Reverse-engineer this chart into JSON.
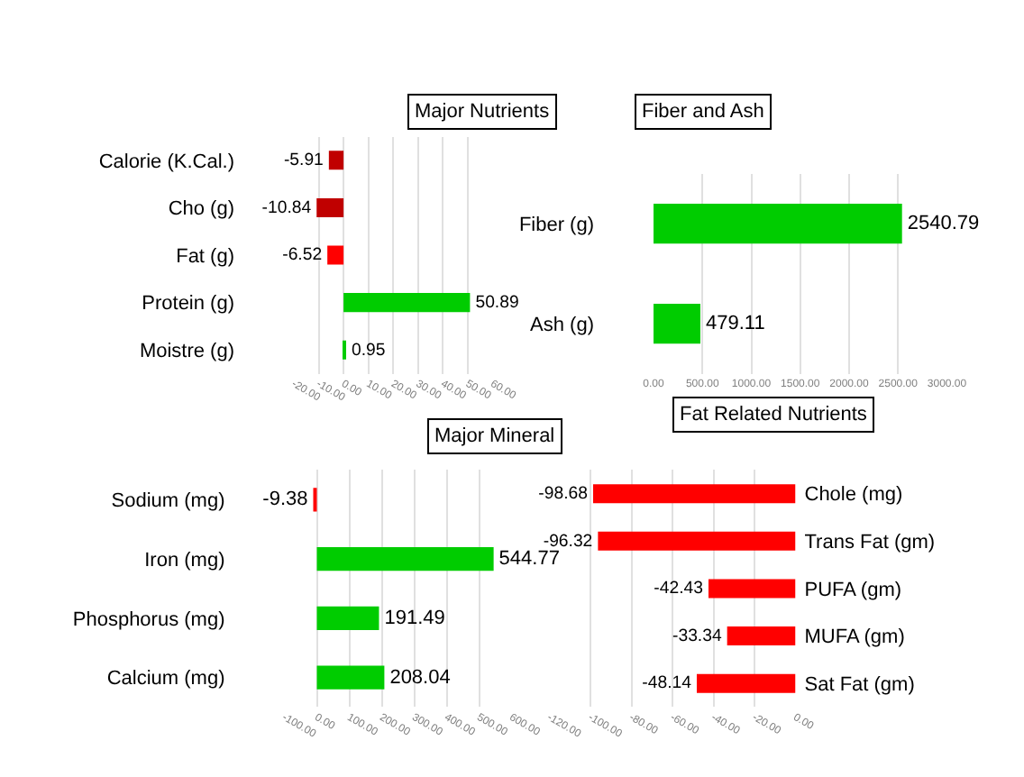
{
  "chart_data": [
    {
      "type": "bar",
      "orientation": "horizontal",
      "title": "Major Nutrients",
      "categories": [
        "Calorie (K.Cal.)",
        "Cho (g)",
        "Fat (g)",
        "Protein (g)",
        "Moistre (g)"
      ],
      "values": [
        -5.91,
        -10.84,
        -6.52,
        50.89,
        0.95
      ],
      "colors": [
        "#c00000",
        "#c00000",
        "#ff0000",
        "#00cc00",
        "#00cc00"
      ],
      "data_labels": true,
      "xlim": [
        -20,
        60
      ],
      "xticks": [
        {
          "value": -20,
          "label": "-20.00"
        },
        {
          "value": -10,
          "label": "-10.00"
        },
        {
          "value": 0,
          "label": "0.00"
        },
        {
          "value": 10,
          "label": "10.00"
        },
        {
          "value": 20,
          "label": "20.00"
        },
        {
          "value": 30,
          "label": "30.00"
        },
        {
          "value": 40,
          "label": "40.00"
        },
        {
          "value": 50,
          "label": "50.00"
        },
        {
          "value": 60,
          "label": "60.00"
        }
      ],
      "grid": "x"
    },
    {
      "type": "bar",
      "orientation": "horizontal",
      "title": "Fiber and Ash",
      "categories": [
        "Fiber (g)",
        "Ash (g)"
      ],
      "values": [
        2540.79,
        479.11
      ],
      "colors": [
        "#00cc00",
        "#00cc00"
      ],
      "data_labels": true,
      "xlim": [
        0,
        3000
      ],
      "xticks": [
        {
          "value": 0,
          "label": "0.00"
        },
        {
          "value": 500,
          "label": "500.00"
        },
        {
          "value": 1000,
          "label": "1000.00"
        },
        {
          "value": 1500,
          "label": "1500.00"
        },
        {
          "value": 2000,
          "label": "2000.00"
        },
        {
          "value": 2500,
          "label": "2500.00"
        },
        {
          "value": 3000,
          "label": "3000.00"
        }
      ],
      "grid": "x"
    },
    {
      "type": "bar",
      "orientation": "horizontal",
      "title": "Major Mineral",
      "categories": [
        "Sodium (mg)",
        "Iron (mg)",
        "Phosphorus (mg)",
        "Calcium (mg)"
      ],
      "values": [
        -9.38,
        544.77,
        191.49,
        208.04
      ],
      "colors": [
        "#ff0000",
        "#00cc00",
        "#00cc00",
        "#00cc00"
      ],
      "data_labels": true,
      "xlim": [
        -100,
        600
      ],
      "xticks": [
        {
          "value": -100,
          "label": "-100.00"
        },
        {
          "value": 0,
          "label": "0.00"
        },
        {
          "value": 100,
          "label": "100.00"
        },
        {
          "value": 200,
          "label": "200.00"
        },
        {
          "value": 300,
          "label": "300.00"
        },
        {
          "value": 400,
          "label": "400.00"
        },
        {
          "value": 500,
          "label": "500.00"
        },
        {
          "value": 600,
          "label": "600.00"
        }
      ],
      "grid": "x"
    },
    {
      "type": "bar",
      "orientation": "horizontal",
      "title": "Fat Related Nutrients",
      "categories": [
        "Chole (mg)",
        "Trans Fat (gm)",
        "PUFA (gm)",
        "MUFA (gm)",
        "Sat Fat (gm)"
      ],
      "values": [
        -98.68,
        -96.32,
        -42.43,
        -33.34,
        -48.14
      ],
      "colors": [
        "#ff0000",
        "#ff0000",
        "#ff0000",
        "#ff0000",
        "#ff0000"
      ],
      "data_labels": true,
      "xlim": [
        -120,
        0
      ],
      "xticks": [
        {
          "value": -120,
          "label": "-120.00"
        },
        {
          "value": -100,
          "label": "-100.00"
        },
        {
          "value": -80,
          "label": "-80.00"
        },
        {
          "value": -60,
          "label": "-60.00"
        },
        {
          "value": -40,
          "label": "-40.00"
        },
        {
          "value": -20,
          "label": "-20.00"
        },
        {
          "value": 0,
          "label": "0.00"
        }
      ],
      "grid": "x"
    }
  ]
}
